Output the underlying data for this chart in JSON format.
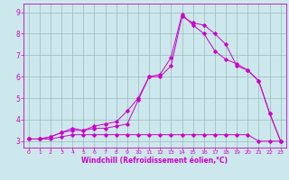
{
  "xlabel": "Windchill (Refroidissement éolien,°C)",
  "bg_color": "#cce8ec",
  "line_color": "#cc00cc",
  "grid_color": "#99bbbb",
  "xlim": [
    -0.5,
    23.5
  ],
  "ylim": [
    2.7,
    9.4
  ],
  "xticks": [
    0,
    1,
    2,
    3,
    4,
    5,
    6,
    7,
    8,
    9,
    10,
    11,
    12,
    13,
    14,
    15,
    16,
    17,
    18,
    19,
    20,
    21,
    22,
    23
  ],
  "yticks": [
    3,
    4,
    5,
    6,
    7,
    8,
    9
  ],
  "line1_x": [
    0,
    1,
    2,
    3,
    4,
    5,
    6,
    7,
    8,
    9,
    10,
    11,
    12,
    13,
    14,
    15,
    16,
    17,
    18,
    19,
    20,
    21,
    22,
    23
  ],
  "line1_y": [
    3.1,
    3.1,
    3.1,
    3.2,
    3.3,
    3.3,
    3.3,
    3.3,
    3.3,
    3.3,
    3.3,
    3.3,
    3.3,
    3.3,
    3.3,
    3.3,
    3.3,
    3.3,
    3.3,
    3.3,
    3.3,
    3.0,
    3.0,
    3.0
  ],
  "line2_x": [
    0,
    1,
    2,
    3,
    4,
    5,
    6,
    7,
    8,
    9,
    10,
    11,
    12,
    13,
    14,
    15,
    16,
    17,
    18,
    19,
    20,
    21,
    22,
    23
  ],
  "line2_y": [
    3.1,
    3.1,
    3.2,
    3.4,
    3.5,
    3.5,
    3.6,
    3.6,
    3.7,
    3.8,
    4.9,
    6.0,
    6.0,
    6.5,
    8.8,
    8.5,
    8.4,
    8.0,
    7.5,
    6.5,
    6.3,
    5.8,
    4.3,
    3.0
  ],
  "line3_x": [
    0,
    1,
    2,
    3,
    4,
    5,
    6,
    7,
    8,
    9,
    10,
    11,
    12,
    13,
    14,
    15,
    16,
    17,
    18,
    19,
    20,
    21,
    22,
    23
  ],
  "line3_y": [
    3.1,
    3.1,
    3.2,
    3.4,
    3.6,
    3.5,
    3.7,
    3.8,
    3.9,
    4.4,
    5.0,
    6.0,
    6.1,
    6.9,
    8.9,
    8.4,
    8.0,
    7.2,
    6.8,
    6.6,
    6.3,
    5.8,
    4.3,
    3.0
  ],
  "xtick_fontsize": 4.5,
  "ytick_fontsize": 5.5,
  "xlabel_fontsize": 5.5
}
